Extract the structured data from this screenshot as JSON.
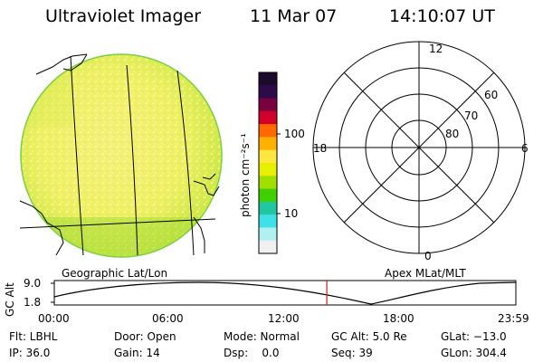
{
  "header": {
    "instrument": "Ultraviolet Imager",
    "date": "11 Mar 07",
    "time": "14:10:07 UT"
  },
  "colorbar": {
    "unit": "photon cm⁻²s⁻¹",
    "ticks": [
      "100",
      "10"
    ],
    "colors": [
      "#1a0a2e",
      "#2e0a4a",
      "#7a0040",
      "#d0002a",
      "#ff6a00",
      "#ffb000",
      "#ffe640",
      "#e6f000",
      "#9fe000",
      "#40d000",
      "#20c8a0",
      "#40e0e8",
      "#b0f0f0",
      "#f0f0f0"
    ]
  },
  "polar_plot": {
    "mlt_labels": [
      "12",
      "18",
      "6",
      "0"
    ],
    "mlat_labels": [
      "60",
      "70",
      "80"
    ]
  },
  "timeline": {
    "ylabel": "GC Alt",
    "yticks": [
      "9.0",
      "1.8"
    ],
    "left_caption": "Geographic Lat/Lon",
    "right_caption": "Apex MLat/MLT",
    "xticks": [
      "00:00",
      "06:00",
      "12:00",
      "18:00",
      "23:59"
    ],
    "current_time_fraction": 0.5904
  },
  "status": {
    "row1": {
      "filter": "Flt: LBHL",
      "door": "Door: Open",
      "mode": "Mode: Normal",
      "gc_alt": "GC Alt: 5.0 Re",
      "glat": "GLat: −13.0"
    },
    "row2": {
      "ip": "IP: 36.0",
      "gain": "Gain: 14",
      "dsp": "Dsp:    0.0",
      "seq": "Seq: 39",
      "glon": "GLon: 304.4"
    }
  }
}
